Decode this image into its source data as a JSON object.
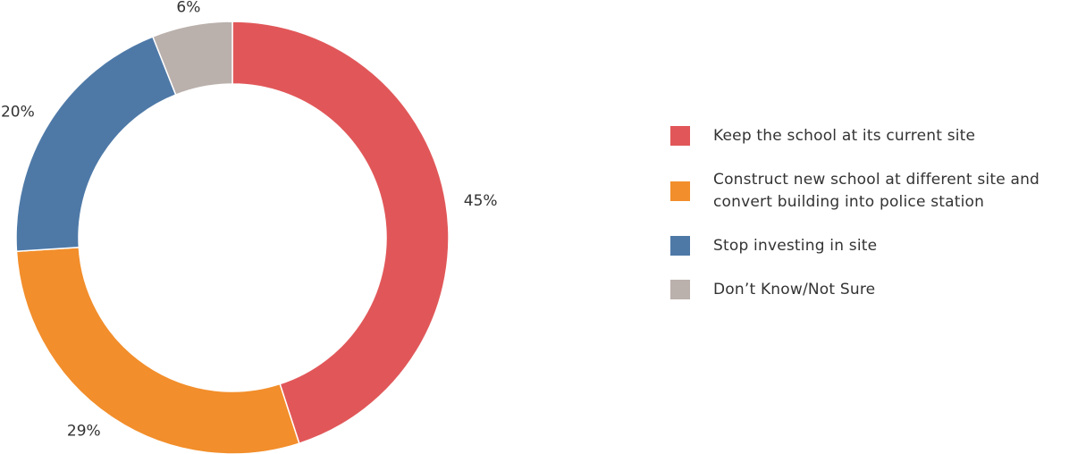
{
  "chart_data": {
    "type": "pie",
    "style": "donut",
    "categories": [
      "Keep the school at its current site",
      "Construct new school at different site and convert building into police station",
      "Stop investing in site",
      "Don’t Know/Not Sure"
    ],
    "values": [
      45,
      29,
      20,
      6
    ],
    "value_labels": [
      "45%",
      "29%",
      "20%",
      "6%"
    ],
    "colors": [
      "#e15759",
      "#f28e2b",
      "#4e79a7",
      "#bab0ac"
    ],
    "legend_placement": "right",
    "legend": [
      {
        "label_lines": [
          "Keep the school at its current site"
        ],
        "color": "#e15759"
      },
      {
        "label_lines": [
          "Construct new school at different site and",
          "convert building into police station"
        ],
        "color": "#f28e2b"
      },
      {
        "label_lines": [
          "Stop investing in site"
        ],
        "color": "#4e79a7"
      },
      {
        "label_lines": [
          "Don’t Know/Not Sure"
        ],
        "color": "#bab0ac"
      }
    ]
  }
}
